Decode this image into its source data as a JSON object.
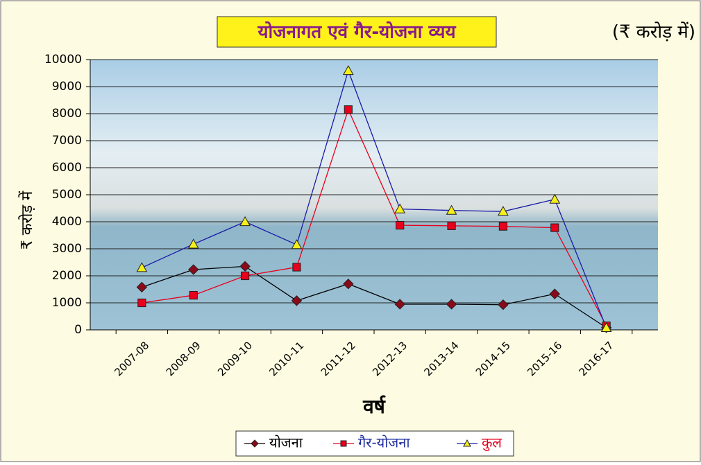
{
  "chart_data": {
    "type": "line",
    "title": "योजनागत एवं गैर-योजना व्यय",
    "subtitle": "(₹ करोड़ में)",
    "x_label": "वर्ष",
    "y_label": "₹ करोड़ में",
    "categories": [
      "2007-08",
      "2008-09",
      "2009-10",
      "2010-11",
      "2011-12",
      "2012-13",
      "2013-14",
      "2014-15",
      "2015-16",
      "2016-17"
    ],
    "series": [
      {
        "name": "योजना",
        "color": "#000000",
        "marker": "diamond",
        "marker_color": "#8b0a1a",
        "legend_text_color": "#000000",
        "values": [
          1580,
          2230,
          2350,
          1080,
          1700,
          950,
          950,
          930,
          1330,
          80
        ]
      },
      {
        "name": "गैर-योजना",
        "color": "#e8001c",
        "marker": "square",
        "marker_color": "#e8001c",
        "legend_text_color": "#1f2f9f",
        "values": [
          1000,
          1280,
          2000,
          2320,
          8150,
          3870,
          3850,
          3830,
          3780,
          150
        ]
      },
      {
        "name": "कुल",
        "color": "#1a1aa8",
        "marker": "triangle",
        "marker_color": "#f5ef1a",
        "legend_text_color": "#e8001c",
        "values": [
          2300,
          3170,
          4000,
          3150,
          9590,
          4470,
          4420,
          4380,
          4830,
          80
        ]
      }
    ],
    "ylim": [
      0,
      10000
    ],
    "yticks": [
      0,
      1000,
      2000,
      3000,
      4000,
      5000,
      6000,
      7000,
      8000,
      9000,
      10000
    ],
    "grid": true,
    "legend_position": "bottom"
  }
}
